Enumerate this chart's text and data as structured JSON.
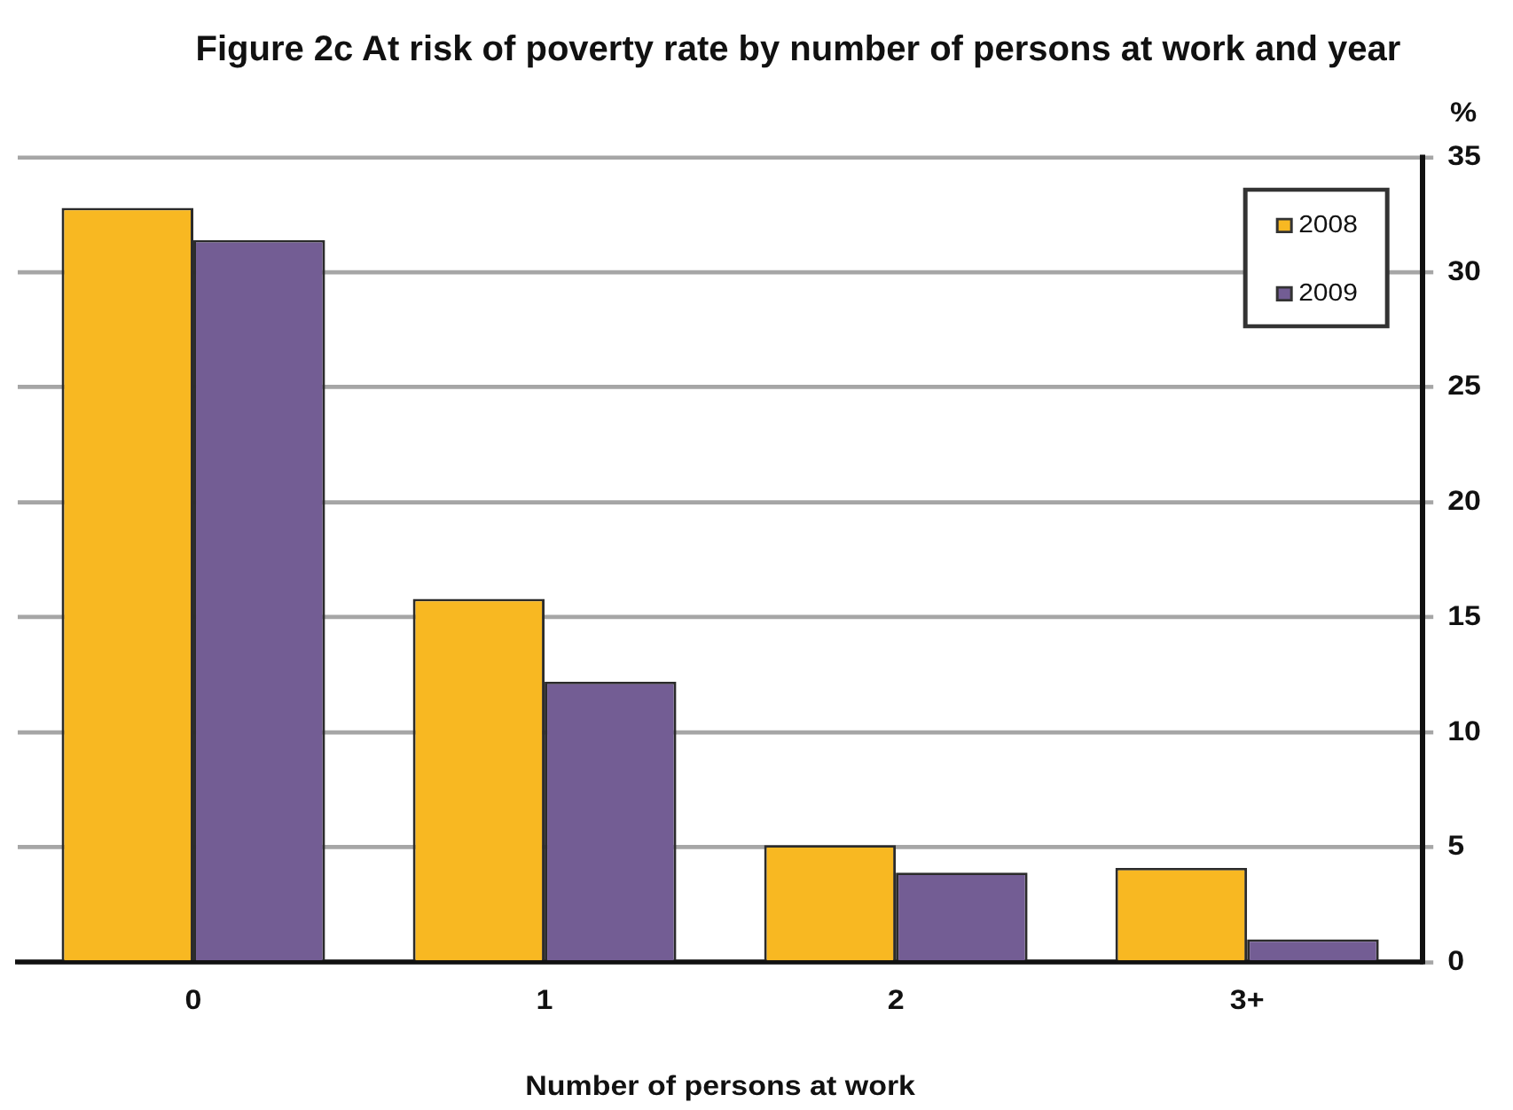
{
  "chart_data": {
    "type": "bar",
    "title": "Figure 2c At risk of poverty rate by number of persons at work and year",
    "xlabel": "Number of persons at work",
    "ylabel": "%",
    "categories": [
      "0",
      "1",
      "2",
      "3+"
    ],
    "series": [
      {
        "name": "2008",
        "color": "#f8b822",
        "values": [
          32.8,
          15.8,
          5.1,
          4.1
        ]
      },
      {
        "name": "2009",
        "color": "#735d94",
        "values": [
          31.4,
          12.2,
          3.9,
          1.0
        ]
      }
    ],
    "ylim": [
      0,
      35
    ],
    "yticks": [
      0,
      5,
      10,
      15,
      20,
      25,
      30,
      35
    ],
    "grid": "y",
    "legend": "top right"
  }
}
